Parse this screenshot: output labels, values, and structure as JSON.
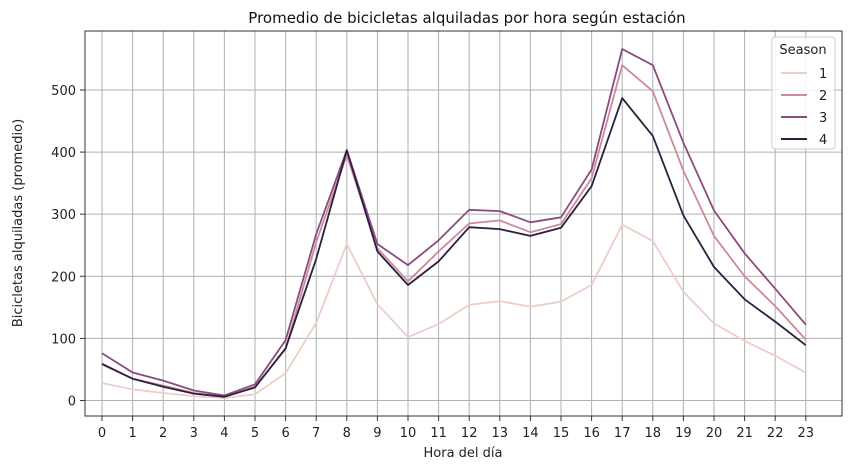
{
  "chart_data": {
    "type": "line",
    "title": "Promedio de bicicletas alquiladas por hora según estación",
    "xlabel": "Hora del día",
    "ylabel": "Bicicletas alquiladas (promedio)",
    "x": [
      "0",
      "1",
      "2",
      "3",
      "4",
      "5",
      "6",
      "7",
      "8",
      "9",
      "10",
      "11",
      "12",
      "13",
      "14",
      "15",
      "16",
      "17",
      "18",
      "19",
      "20",
      "21",
      "22",
      "23"
    ],
    "ylim": [
      -25,
      595
    ],
    "yticks": [
      "0",
      "100",
      "200",
      "300",
      "400",
      "500"
    ],
    "grid": true,
    "legend": {
      "title": "Season",
      "placement": "top-right"
    },
    "series": [
      {
        "name": "1",
        "color": "#ebcfc6",
        "values": [
          28,
          18,
          12,
          7,
          4,
          10,
          44,
          125,
          252,
          155,
          102,
          123,
          154,
          160,
          151,
          159,
          186,
          283,
          257,
          175,
          124,
          96,
          72,
          45
        ]
      },
      {
        "name": "2",
        "color": "#cc8a9b",
        "values": [
          58,
          35,
          24,
          12,
          6,
          22,
          83,
          255,
          395,
          245,
          192,
          240,
          285,
          290,
          271,
          284,
          358,
          540,
          498,
          370,
          265,
          200,
          152,
          98
        ]
      },
      {
        "name": "3",
        "color": "#894c7e",
        "values": [
          76,
          45,
          32,
          16,
          8,
          26,
          97,
          268,
          403,
          252,
          218,
          258,
          307,
          305,
          287,
          295,
          372,
          566,
          540,
          415,
          306,
          237,
          180,
          122
        ]
      },
      {
        "name": "4",
        "color": "#2a2140",
        "values": [
          59,
          35,
          22,
          11,
          6,
          21,
          84,
          228,
          403,
          240,
          186,
          224,
          279,
          276,
          265,
          278,
          345,
          487,
          426,
          298,
          215,
          163,
          127,
          89
        ]
      }
    ]
  }
}
